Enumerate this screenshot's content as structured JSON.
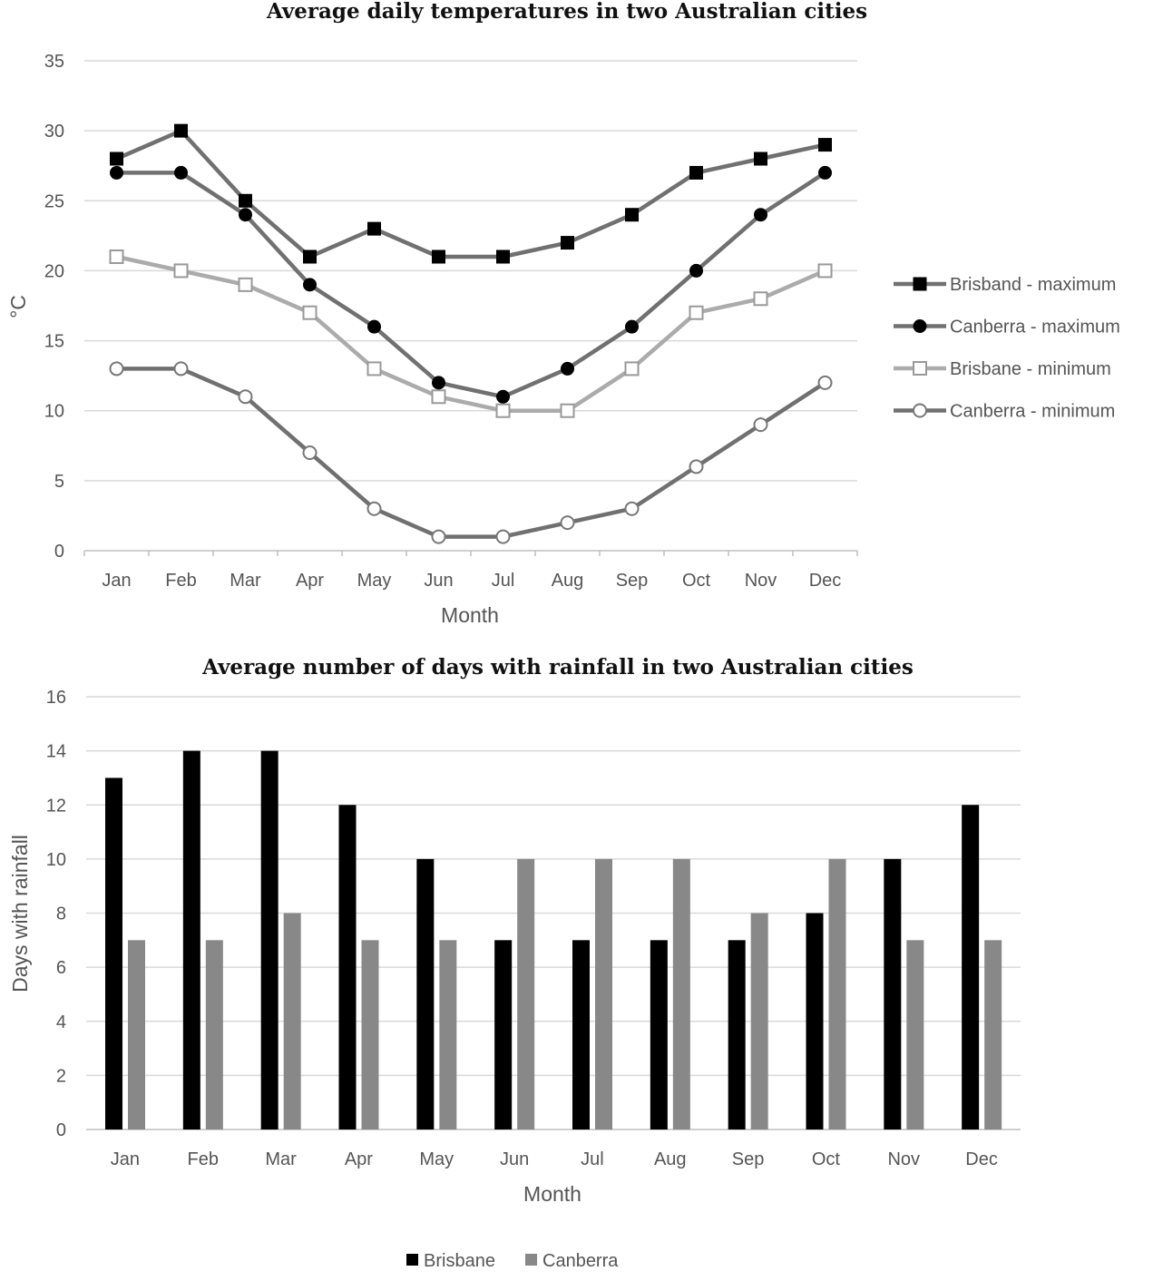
{
  "chart_data": [
    {
      "type": "line",
      "title": "Average daily temperatures in two Australian cities",
      "xlabel": "Month",
      "ylabel": "°C",
      "categories": [
        "Jan",
        "Feb",
        "Mar",
        "Apr",
        "May",
        "Jun",
        "Jul",
        "Aug",
        "Sep",
        "Oct",
        "Nov",
        "Dec"
      ],
      "ylim": [
        0,
        35
      ],
      "yticks": [
        0,
        5,
        10,
        15,
        20,
        25,
        30,
        35
      ],
      "grid": true,
      "legend_position": "right",
      "series": [
        {
          "name": "Brisband - maximum",
          "marker": "square-filled",
          "line_color": "#707070",
          "values": [
            28,
            30,
            25,
            21,
            23,
            21,
            21,
            22,
            24,
            27,
            28,
            29
          ]
        },
        {
          "name": "Canberra - maximum",
          "marker": "circle-filled",
          "line_color": "#707070",
          "values": [
            27,
            27,
            24,
            19,
            16,
            12,
            11,
            13,
            16,
            20,
            24,
            27
          ]
        },
        {
          "name": "Brisbane - minimum",
          "marker": "square-open",
          "line_color": "#ababab",
          "values": [
            21,
            20,
            19,
            17,
            13,
            11,
            10,
            10,
            13,
            17,
            18,
            20
          ]
        },
        {
          "name": "Canberra - minimum",
          "marker": "circle-open",
          "line_color": "#707070",
          "values": [
            13,
            13,
            11,
            7,
            3,
            1,
            1,
            2,
            3,
            6,
            9,
            12
          ]
        }
      ]
    },
    {
      "type": "bar",
      "title": "Average number of days with rainfall in two Australian cities",
      "xlabel": "Month",
      "ylabel": "Days with rainfall",
      "categories": [
        "Jan",
        "Feb",
        "Mar",
        "Apr",
        "May",
        "Jun",
        "Jul",
        "Aug",
        "Sep",
        "Oct",
        "Nov",
        "Dec"
      ],
      "ylim": [
        0,
        16
      ],
      "yticks": [
        0,
        2,
        4,
        6,
        8,
        10,
        12,
        14,
        16
      ],
      "grid": true,
      "legend_position": "bottom",
      "series": [
        {
          "name": "Brisbane",
          "color": "#000000",
          "values": [
            13,
            14,
            14,
            12,
            10,
            7,
            7,
            7,
            7,
            8,
            10,
            12
          ]
        },
        {
          "name": "Canberra",
          "color": "#888888",
          "values": [
            7,
            7,
            8,
            7,
            7,
            10,
            10,
            10,
            8,
            10,
            7,
            7
          ]
        }
      ]
    }
  ]
}
